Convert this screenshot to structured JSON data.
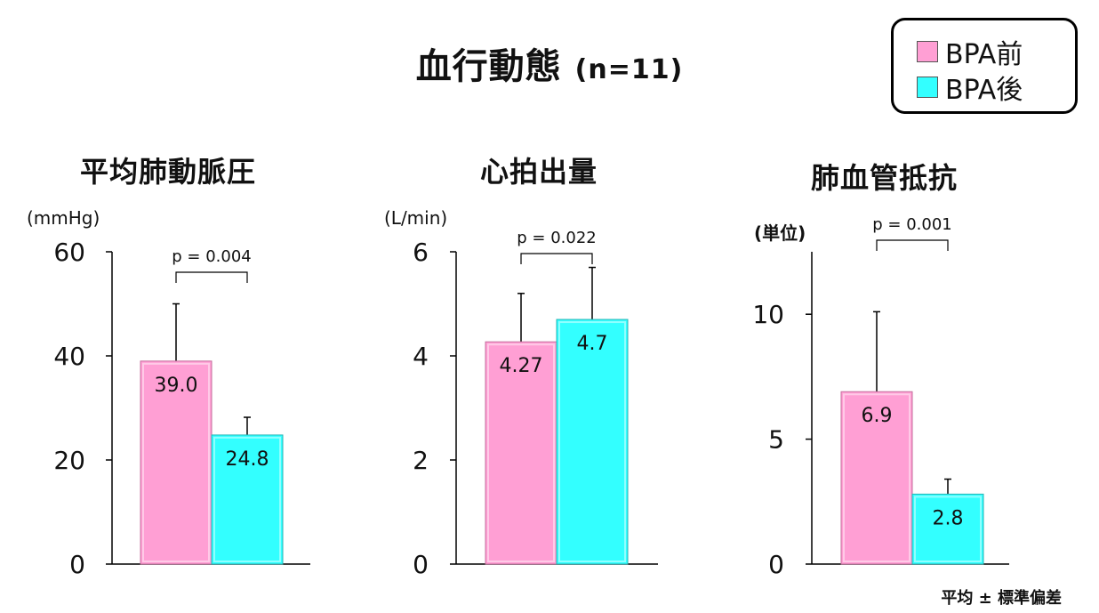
{
  "title": {
    "main": "血行動態",
    "n": "(n=11)"
  },
  "legend": [
    {
      "label": "BPA前",
      "color": "#ff9fd4"
    },
    {
      "label": "BPA後",
      "color": "#33ffff"
    }
  ],
  "footnote": "平均 ± 標準偏差",
  "colors": {
    "pre": "#ff9fd4",
    "pre_edge": "#c56d9c",
    "post": "#33ffff",
    "post_edge": "#25b5b5"
  },
  "chart_data": [
    {
      "type": "bar",
      "title": "平均肺動脈圧",
      "ylabel": "(mmHg)",
      "ylim": [
        0,
        60
      ],
      "yticks": [
        "0",
        "20",
        "40",
        "60"
      ],
      "yticks_values": [
        0,
        20,
        40,
        60
      ],
      "categories": [
        "BPA前",
        "BPA後"
      ],
      "values": [
        39.0,
        24.8
      ],
      "value_labels": [
        "39.0",
        "24.8"
      ],
      "error_upper": [
        50.0,
        28.2
      ],
      "p_value": "p = 0.004"
    },
    {
      "type": "bar",
      "title": "心拍出量",
      "ylabel": "(L/min)",
      "ylim": [
        0,
        6
      ],
      "yticks": [
        "0",
        "2",
        "4",
        "6"
      ],
      "yticks_values": [
        0,
        2,
        4,
        6
      ],
      "categories": [
        "BPA前",
        "BPA後"
      ],
      "values": [
        4.27,
        4.7
      ],
      "value_labels": [
        "4.27",
        "4.7"
      ],
      "error_upper": [
        5.2,
        5.7
      ],
      "p_value": "p = 0.022"
    },
    {
      "type": "bar",
      "title": "肺血管抵抗",
      "ylabel": "(単位)",
      "ylim": [
        0,
        12.5
      ],
      "yticks": [
        "0",
        "5",
        "10"
      ],
      "yticks_values": [
        0,
        5,
        10
      ],
      "categories": [
        "BPA前",
        "BPA後"
      ],
      "values": [
        6.9,
        2.8
      ],
      "value_labels": [
        "6.9",
        "2.8"
      ],
      "error_upper": [
        10.1,
        3.4
      ],
      "p_value": "p = 0.001"
    }
  ]
}
